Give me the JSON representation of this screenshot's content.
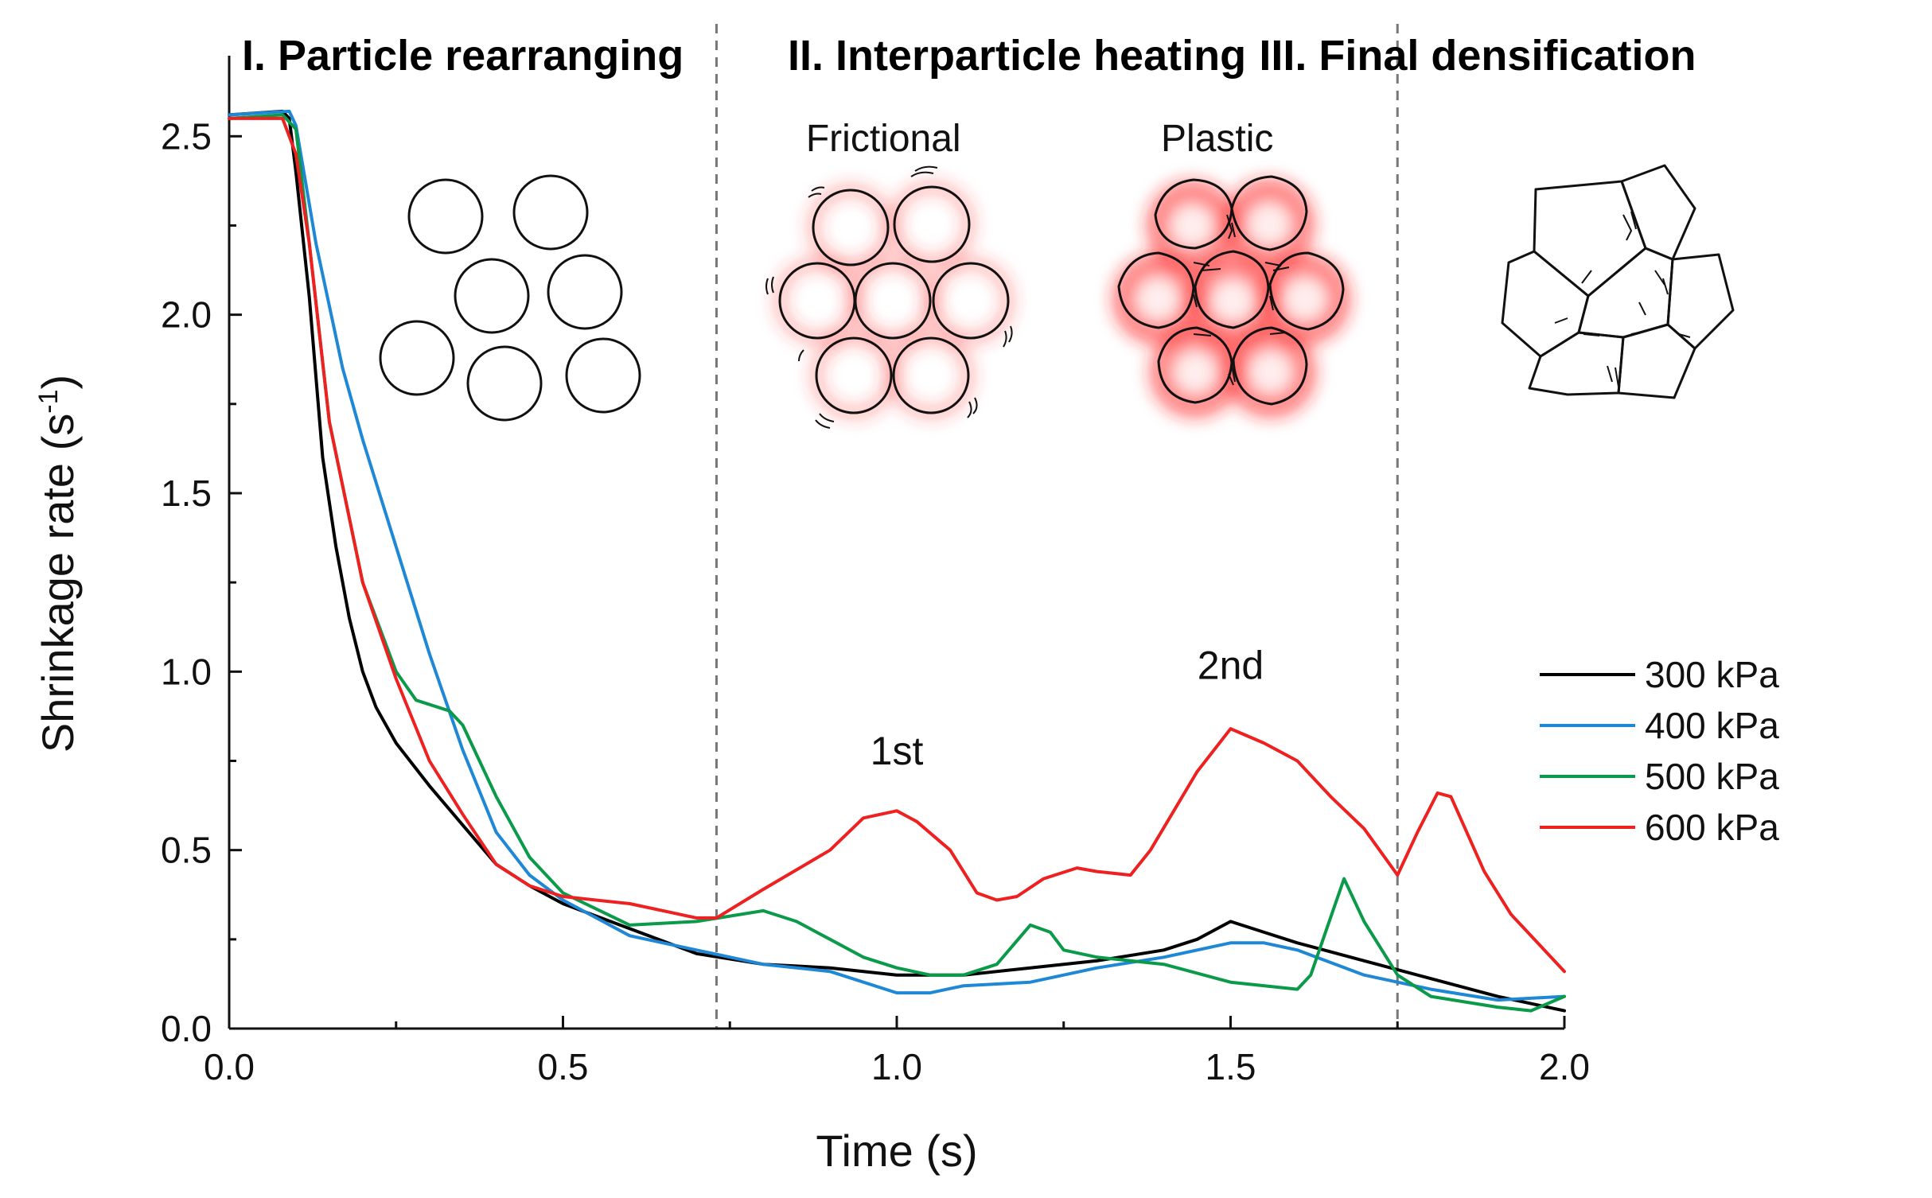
{
  "chart_data": {
    "type": "line",
    "title": "",
    "xlabel": "Time (s)",
    "ylabel": "Shrinkage rate (s",
    "ylabel_superscript": "-1",
    "ylabel_suffix": ")",
    "xlim": [
      0.0,
      2.0
    ],
    "ylim": [
      0.0,
      2.65
    ],
    "x_ticks": [
      0.0,
      0.5,
      1.0,
      1.5,
      2.0
    ],
    "x_tick_labels": [
      "0.0",
      "0.5",
      "1.0",
      "1.5",
      "2.0"
    ],
    "y_ticks": [
      0.0,
      0.5,
      1.0,
      1.5,
      2.0,
      2.5
    ],
    "y_tick_labels": [
      "0.0",
      "0.5",
      "1.0",
      "1.5",
      "2.0",
      "2.5"
    ],
    "stage_boundaries": [
      0.73,
      1.75
    ],
    "stages": [
      {
        "label": "I. Particle rearranging",
        "x_center": 0.35
      },
      {
        "label": "II. Interparticle heating",
        "x_center": 1.18
      },
      {
        "label": "III. Final densification",
        "x_center": 1.87
      }
    ],
    "insets": [
      {
        "label": "Frictional",
        "x_center": 0.98
      },
      {
        "label": "Plastic",
        "x_center": 1.48
      }
    ],
    "annotations": [
      {
        "text": "1st",
        "x": 1.0,
        "y": 0.74
      },
      {
        "text": "2nd",
        "x": 1.5,
        "y": 0.98
      }
    ],
    "legend_position": "right",
    "series": [
      {
        "name": "300 kPa",
        "color": "#000000",
        "points": [
          [
            0.0,
            2.56
          ],
          [
            0.08,
            2.57
          ],
          [
            0.09,
            2.55
          ],
          [
            0.1,
            2.4
          ],
          [
            0.12,
            2.05
          ],
          [
            0.14,
            1.6
          ],
          [
            0.16,
            1.35
          ],
          [
            0.18,
            1.15
          ],
          [
            0.2,
            1.0
          ],
          [
            0.22,
            0.9
          ],
          [
            0.25,
            0.8
          ],
          [
            0.3,
            0.68
          ],
          [
            0.35,
            0.57
          ],
          [
            0.4,
            0.46
          ],
          [
            0.45,
            0.4
          ],
          [
            0.5,
            0.35
          ],
          [
            0.6,
            0.28
          ],
          [
            0.7,
            0.21
          ],
          [
            0.8,
            0.18
          ],
          [
            0.9,
            0.17
          ],
          [
            1.0,
            0.15
          ],
          [
            1.1,
            0.15
          ],
          [
            1.2,
            0.17
          ],
          [
            1.3,
            0.19
          ],
          [
            1.4,
            0.22
          ],
          [
            1.45,
            0.25
          ],
          [
            1.5,
            0.3
          ],
          [
            1.55,
            0.27
          ],
          [
            1.6,
            0.24
          ],
          [
            1.7,
            0.19
          ],
          [
            1.8,
            0.14
          ],
          [
            1.9,
            0.09
          ],
          [
            2.0,
            0.05
          ]
        ]
      },
      {
        "name": "400 kPa",
        "color": "#1e88d6",
        "points": [
          [
            0.0,
            2.56
          ],
          [
            0.09,
            2.57
          ],
          [
            0.1,
            2.53
          ],
          [
            0.13,
            2.2
          ],
          [
            0.17,
            1.85
          ],
          [
            0.2,
            1.65
          ],
          [
            0.25,
            1.35
          ],
          [
            0.3,
            1.05
          ],
          [
            0.35,
            0.78
          ],
          [
            0.4,
            0.55
          ],
          [
            0.45,
            0.43
          ],
          [
            0.5,
            0.36
          ],
          [
            0.6,
            0.26
          ],
          [
            0.7,
            0.22
          ],
          [
            0.8,
            0.18
          ],
          [
            0.9,
            0.16
          ],
          [
            1.0,
            0.1
          ],
          [
            1.05,
            0.1
          ],
          [
            1.1,
            0.12
          ],
          [
            1.2,
            0.13
          ],
          [
            1.3,
            0.17
          ],
          [
            1.4,
            0.2
          ],
          [
            1.5,
            0.24
          ],
          [
            1.55,
            0.24
          ],
          [
            1.6,
            0.22
          ],
          [
            1.7,
            0.15
          ],
          [
            1.8,
            0.11
          ],
          [
            1.9,
            0.08
          ],
          [
            2.0,
            0.09
          ]
        ]
      },
      {
        "name": "500 kPa",
        "color": "#0a9a4a",
        "points": [
          [
            0.0,
            2.55
          ],
          [
            0.08,
            2.56
          ],
          [
            0.1,
            2.52
          ],
          [
            0.12,
            2.2
          ],
          [
            0.15,
            1.7
          ],
          [
            0.2,
            1.25
          ],
          [
            0.25,
            1.0
          ],
          [
            0.28,
            0.92
          ],
          [
            0.33,
            0.89
          ],
          [
            0.35,
            0.85
          ],
          [
            0.4,
            0.65
          ],
          [
            0.45,
            0.48
          ],
          [
            0.5,
            0.38
          ],
          [
            0.6,
            0.29
          ],
          [
            0.7,
            0.3
          ],
          [
            0.8,
            0.33
          ],
          [
            0.85,
            0.3
          ],
          [
            0.9,
            0.25
          ],
          [
            0.95,
            0.2
          ],
          [
            1.0,
            0.17
          ],
          [
            1.05,
            0.15
          ],
          [
            1.1,
            0.15
          ],
          [
            1.15,
            0.18
          ],
          [
            1.2,
            0.29
          ],
          [
            1.23,
            0.27
          ],
          [
            1.25,
            0.22
          ],
          [
            1.3,
            0.2
          ],
          [
            1.4,
            0.18
          ],
          [
            1.5,
            0.13
          ],
          [
            1.6,
            0.11
          ],
          [
            1.62,
            0.15
          ],
          [
            1.67,
            0.42
          ],
          [
            1.7,
            0.3
          ],
          [
            1.75,
            0.15
          ],
          [
            1.8,
            0.09
          ],
          [
            1.9,
            0.06
          ],
          [
            1.95,
            0.05
          ],
          [
            2.0,
            0.09
          ]
        ]
      },
      {
        "name": "600 kPa",
        "color": "#ef2020",
        "points": [
          [
            0.0,
            2.55
          ],
          [
            0.08,
            2.55
          ],
          [
            0.1,
            2.45
          ],
          [
            0.12,
            2.2
          ],
          [
            0.15,
            1.7
          ],
          [
            0.2,
            1.25
          ],
          [
            0.25,
            0.98
          ],
          [
            0.3,
            0.75
          ],
          [
            0.35,
            0.6
          ],
          [
            0.4,
            0.46
          ],
          [
            0.45,
            0.4
          ],
          [
            0.5,
            0.37
          ],
          [
            0.6,
            0.35
          ],
          [
            0.7,
            0.31
          ],
          [
            0.73,
            0.31
          ],
          [
            0.8,
            0.39
          ],
          [
            0.9,
            0.5
          ],
          [
            0.95,
            0.59
          ],
          [
            1.0,
            0.61
          ],
          [
            1.03,
            0.58
          ],
          [
            1.08,
            0.5
          ],
          [
            1.12,
            0.38
          ],
          [
            1.15,
            0.36
          ],
          [
            1.18,
            0.37
          ],
          [
            1.22,
            0.42
          ],
          [
            1.27,
            0.45
          ],
          [
            1.3,
            0.44
          ],
          [
            1.35,
            0.43
          ],
          [
            1.38,
            0.5
          ],
          [
            1.45,
            0.72
          ],
          [
            1.5,
            0.84
          ],
          [
            1.55,
            0.8
          ],
          [
            1.6,
            0.75
          ],
          [
            1.65,
            0.65
          ],
          [
            1.7,
            0.56
          ],
          [
            1.75,
            0.43
          ],
          [
            1.78,
            0.55
          ],
          [
            1.81,
            0.66
          ],
          [
            1.83,
            0.65
          ],
          [
            1.88,
            0.44
          ],
          [
            1.92,
            0.32
          ],
          [
            1.95,
            0.26
          ],
          [
            2.0,
            0.16
          ]
        ]
      }
    ]
  }
}
